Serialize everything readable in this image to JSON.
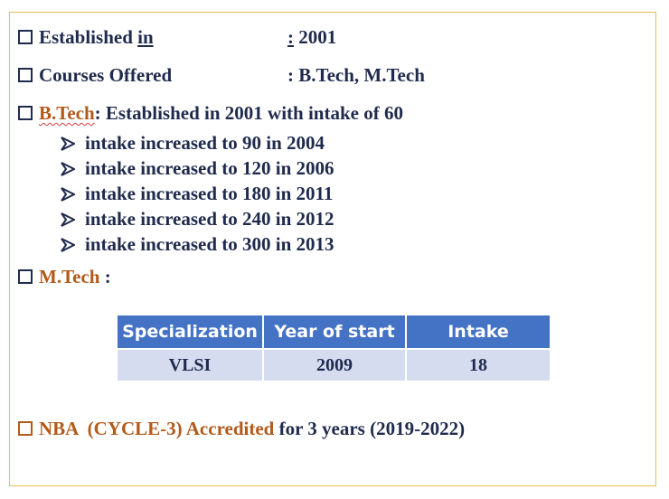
{
  "established": {
    "label": "Established ",
    "label_underlined": "in",
    "colon": ":",
    "value": " 2001"
  },
  "courses": {
    "label": "Courses Offered",
    "value": ": B.Tech, M.Tech"
  },
  "btech": {
    "name": "B.Tech",
    "text": ": Established in 2001 with intake of 60",
    "increases": [
      "intake increased to 90 in 2004",
      "intake increased to 120 in 2006",
      "intake increased to 180 in 2011",
      "intake increased to 240 in 2012",
      "intake increased to 300 in 2013"
    ]
  },
  "mtech": {
    "name": "M.Tech",
    "text": " :"
  },
  "table": {
    "headers": [
      "Specialization",
      "Year of start",
      "Intake"
    ],
    "rows": [
      [
        "VLSI",
        "2009",
        "18"
      ]
    ]
  },
  "nba": {
    "highlight": "NBA  (CYCLE-3) Accredited",
    "text": " for 3 years (2019-2022)"
  },
  "colors": {
    "accent_orange": "#b25a1a",
    "text_navy": "#1f2a4d",
    "table_header": "#4472c4",
    "table_cell": "#d6dcf0",
    "frame": "#e2c24a"
  }
}
